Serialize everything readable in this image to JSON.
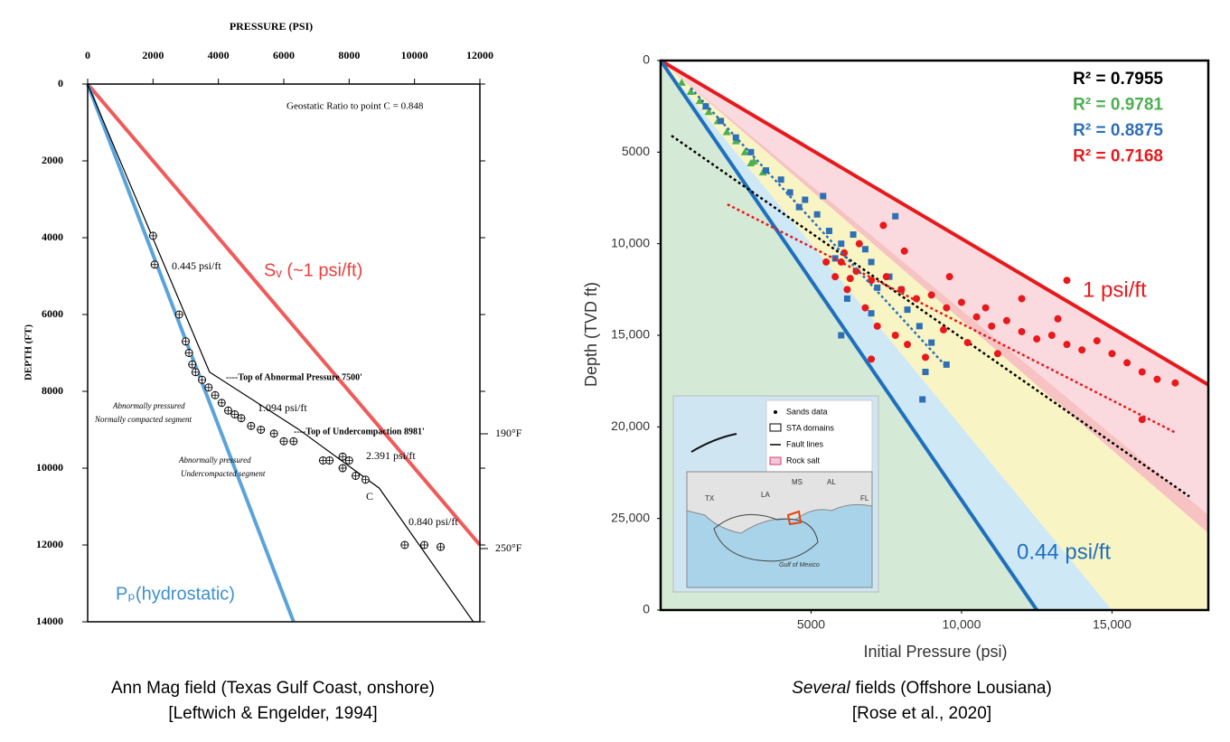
{
  "chart_data": [
    {
      "type": "line",
      "x_label": "PRESSURE (PSI)",
      "y_label": "DEPTH (FT)",
      "xlim": [
        0,
        12000
      ],
      "xticks": [
        0,
        2000,
        4000,
        6000,
        8000,
        10000,
        12000
      ],
      "ylim": [
        0,
        14000
      ],
      "yticks": [
        0,
        2000,
        4000,
        6000,
        8000,
        10000,
        12000,
        14000
      ],
      "series": [
        {
          "name": "Sᵥ (~1 psi/ft)",
          "type": "line",
          "color": "#f05a5a",
          "x": [
            0,
            12000
          ],
          "values": [
            0,
            12000
          ]
        },
        {
          "name": "Pₚ(hydrostatic)",
          "type": "line",
          "color": "#5ba3d9",
          "x": [
            0,
            6300
          ],
          "values": [
            0,
            14000
          ]
        },
        {
          "type": "line",
          "color": "#000000",
          "x": [
            0,
            3730,
            6440,
            8920,
            11800
          ],
          "values": [
            0,
            7500,
            8981,
            10520,
            14000
          ]
        },
        {
          "type": "scatter",
          "color": "#000000",
          "x": [
            2000,
            2050,
            2800,
            3000,
            3100,
            3200,
            3300,
            3500,
            3700,
            3900,
            4100,
            4300,
            4500,
            4700,
            5000,
            5300,
            5700,
            6000,
            6300,
            7200,
            7400,
            7800,
            8000,
            7800,
            8200,
            8500,
            9700,
            10300,
            10800
          ],
          "values": [
            3950,
            4700,
            6000,
            6700,
            7000,
            7300,
            7500,
            7700,
            7900,
            8100,
            8300,
            8500,
            8600,
            8700,
            8900,
            9000,
            9100,
            9300,
            9300,
            9800,
            9800,
            9700,
            9800,
            10000,
            10200,
            10300,
            12000,
            12000,
            12050
          ]
        }
      ],
      "annotations": [
        "Geostatic Ratio to point C = 0.848",
        "0.445 psi/ft",
        "----Top of Abnormal Pressure 7500'",
        "1.094 psi/ft",
        "Abnormally pressured",
        "Normally compacted segment",
        "----Top of Undercompaction 8981'",
        "2.391 psi/ft",
        "Abnormally pressured",
        "Undercompacted segment",
        "C",
        "0.840 psi/ft",
        "190°F",
        "250°F"
      ],
      "caption": [
        "Ann Mag field (Texas Gulf Coast, onshore)",
        "[Leftwich & Engelder, 1994]"
      ]
    },
    {
      "type": "scatter",
      "x_label": "Initial Pressure (psi)",
      "y_label": "Depth (TVD ft)",
      "xlim": [
        0,
        18200
      ],
      "xticks": [
        5000,
        {
          "value": 10000,
          "label": "10,000"
        },
        {
          "value": 15000,
          "label": "15,000"
        }
      ],
      "ylim": [
        0,
        30000
      ],
      "yticks": [
        0,
        5000,
        {
          "value": 10000,
          "label": "10,000"
        },
        {
          "value": 15000,
          "label": "15,000"
        },
        {
          "value": 20000,
          "label": "20,000"
        },
        {
          "value": 25000,
          "label": "25,000"
        },
        {
          "value": 30000,
          "label": "0"
        }
      ],
      "series": [
        {
          "name": "1 psi/ft",
          "type": "line",
          "color": "#e8191c",
          "x": [
            0,
            18200
          ],
          "values": [
            0,
            17700
          ]
        },
        {
          "name": "0.44 psi/ft",
          "type": "line",
          "color": "#1f6fbf",
          "x": [
            0,
            12500
          ],
          "values": [
            0,
            30000
          ]
        },
        {
          "name": "R² = 0.7955",
          "type": "trend",
          "color": "#000000",
          "x": [
            360,
            17570
          ],
          "values": [
            4100,
            23800
          ]
        },
        {
          "name": "R² = 0.9781",
          "type": "scatter",
          "marker": "triangle",
          "color": "#4caf50",
          "x": [
            700,
            1000,
            1300,
            1600,
            1900,
            2200,
            2500,
            2800,
            3100,
            3400,
            3000,
            1500
          ],
          "values": [
            1200,
            1700,
            2200,
            2800,
            3300,
            3900,
            4400,
            5000,
            5500,
            6100,
            5600,
            2500
          ]
        },
        {
          "name": "R² = 0.8875",
          "type": "scatter",
          "marker": "square",
          "color": "#2f6fb5",
          "x": [
            1500,
            2000,
            2500,
            3000,
            3500,
            4000,
            4300,
            4800,
            5200,
            5600,
            6000,
            6400,
            6800,
            7000,
            7600,
            8000,
            8200,
            8600,
            9000,
            8800,
            9500,
            7800,
            5800,
            6200,
            7200,
            4600,
            5400,
            8700,
            6000,
            7000
          ],
          "values": [
            2500,
            3300,
            4200,
            5000,
            6000,
            6500,
            7200,
            7600,
            8400,
            9300,
            10000,
            9500,
            10300,
            11000,
            11800,
            12500,
            13600,
            14500,
            15400,
            17000,
            16600,
            8500,
            10800,
            13000,
            12400,
            8000,
            7400,
            18500,
            15000,
            13800
          ]
        },
        {
          "name": "R² = 0.7168",
          "type": "scatter",
          "marker": "circle",
          "color": "#e8191c",
          "x": [
            6000,
            6500,
            7000,
            7500,
            8000,
            8500,
            9000,
            9500,
            10000,
            10500,
            11000,
            11500,
            12000,
            12500,
            13000,
            13500,
            14000,
            14500,
            15000,
            15500,
            16000,
            16500,
            17100,
            16000,
            6200,
            6800,
            7200,
            7800,
            8200,
            8800,
            6100,
            5800,
            6600,
            7400,
            8100,
            9600,
            10800,
            12000,
            13200,
            11200,
            7000,
            9400,
            10200,
            13500,
            5500,
            6300
          ],
          "values": [
            11000,
            11500,
            12000,
            11800,
            12500,
            13000,
            12800,
            13500,
            13200,
            14000,
            14500,
            14200,
            14800,
            15200,
            15000,
            15500,
            15800,
            15300,
            16000,
            16500,
            17000,
            17400,
            17600,
            19600,
            12500,
            13500,
            14500,
            15000,
            15500,
            16200,
            10500,
            11800,
            10000,
            9000,
            10400,
            11800,
            13500,
            13000,
            14100,
            16000,
            16300,
            14700,
            15400,
            12000,
            11000,
            11900
          ]
        },
        {
          "type": "trend",
          "color": "#2f6fb5",
          "x": [
            1000,
            9430
          ],
          "values": [
            1500,
            16600
          ]
        },
        {
          "type": "trend",
          "color": "#e8191c",
          "x": [
            2220,
            17090
          ],
          "values": [
            7850,
            20300
          ]
        }
      ],
      "inset": {
        "legend": [
          "Sands data",
          "STA domains",
          "Fault lines",
          "Rock salt"
        ],
        "labels": [
          "TX",
          "LA",
          "MS",
          "AL",
          "FL",
          "Gulf of Mexico"
        ]
      },
      "caption": [
        "Several",
        "fields (Offshore Lousiana)",
        "[Rose et al., 2020]"
      ]
    }
  ]
}
